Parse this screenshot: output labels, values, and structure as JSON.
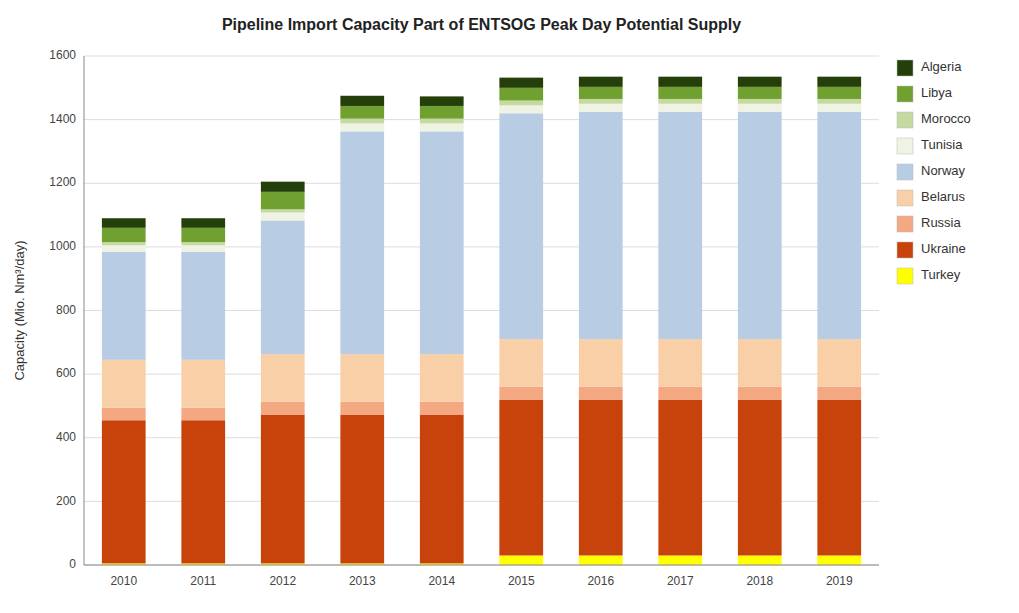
{
  "chart_data": {
    "type": "bar",
    "stacked": true,
    "title": "Pipeline Import Capacity Part of ENTSOG Peak Day Potential Supply",
    "ylabel": "Capacity (Mio. Nm³/day)",
    "categories": [
      "2010",
      "2011",
      "2012",
      "2013",
      "2014",
      "2015",
      "2016",
      "2017",
      "2018",
      "2019"
    ],
    "series": [
      {
        "name": "Turkey",
        "color": "#ffff00",
        "values": [
          5,
          5,
          5,
          5,
          5,
          30,
          30,
          30,
          30,
          30
        ]
      },
      {
        "name": "Ukraine",
        "color": "#c8420c",
        "values": [
          450,
          450,
          468,
          468,
          468,
          490,
          490,
          490,
          490,
          490
        ]
      },
      {
        "name": "Russia",
        "color": "#f4a882",
        "values": [
          40,
          40,
          40,
          40,
          40,
          40,
          40,
          40,
          40,
          40
        ]
      },
      {
        "name": "Belarus",
        "color": "#f9cfa8",
        "values": [
          150,
          150,
          150,
          150,
          150,
          150,
          150,
          150,
          150,
          150
        ]
      },
      {
        "name": "Norway",
        "color": "#b8cce4",
        "values": [
          340,
          340,
          420,
          700,
          700,
          710,
          715,
          715,
          715,
          715
        ]
      },
      {
        "name": "Tunisia",
        "color": "#eef3e4",
        "values": [
          20,
          20,
          25,
          25,
          25,
          25,
          25,
          25,
          25,
          25
        ]
      },
      {
        "name": "Morocco",
        "color": "#c6d9a0",
        "values": [
          10,
          10,
          10,
          15,
          15,
          15,
          15,
          15,
          15,
          15
        ]
      },
      {
        "name": "Libya",
        "color": "#70a030",
        "values": [
          45,
          45,
          55,
          40,
          40,
          40,
          38,
          38,
          38,
          38
        ]
      },
      {
        "name": "Algeria",
        "color": "#243f09",
        "values": [
          30,
          30,
          32,
          32,
          30,
          32,
          32,
          32,
          32,
          32
        ]
      }
    ],
    "ylim": [
      0,
      1600
    ],
    "yticks": [
      0,
      200,
      400,
      600,
      800,
      1000,
      1200,
      1400,
      1600
    ],
    "grid": true,
    "legend": "right"
  }
}
